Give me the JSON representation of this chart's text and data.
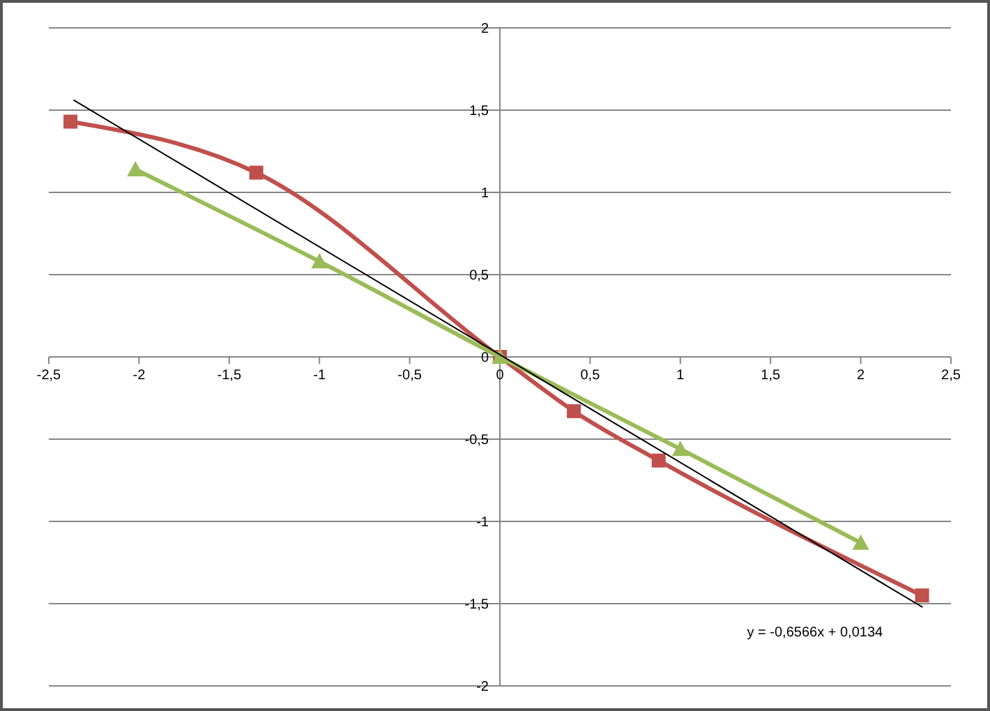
{
  "chart_data": {
    "type": "line",
    "xlim": [
      -2.5,
      2.5
    ],
    "ylim": [
      -2,
      2
    ],
    "xticks": [
      {
        "value": -2.5,
        "label": "-2,5"
      },
      -2,
      {
        "value": -1.5,
        "label": "-1,5"
      },
      -1,
      {
        "value": -0.5,
        "label": "-0,5"
      },
      0,
      {
        "value": 0.5,
        "label": "0,5"
      },
      1,
      {
        "value": 1.5,
        "label": "1,5"
      },
      2,
      {
        "value": 2.5,
        "label": "2,5"
      }
    ],
    "yticks": [
      -2,
      {
        "value": -1.5,
        "label": "-1,5"
      },
      -1,
      {
        "value": -0.5,
        "label": "-0,5"
      },
      0,
      {
        "value": 0.5,
        "label": "0,5"
      },
      1,
      {
        "value": 1.5,
        "label": "1,5"
      },
      2
    ],
    "grid": "y",
    "series": [
      {
        "color": "#c0504d",
        "marker": "square",
        "x": [
          -2.38,
          -1.35,
          0,
          0.41,
          0.88,
          2.34
        ],
        "values": [
          1.43,
          1.12,
          0,
          -0.33,
          -0.63,
          -1.45
        ]
      },
      {
        "color": "#9bbb59",
        "marker": "triangle",
        "x": [
          -2.02,
          -1,
          0,
          1,
          2
        ],
        "values": [
          1.14,
          0.58,
          0,
          -0.56,
          -1.13
        ]
      },
      {
        "color": "#000000",
        "marker": "none",
        "x": [
          -2.36,
          2.34
        ],
        "values": [
          1.56,
          -1.52
        ]
      }
    ],
    "annotations": [
      "y = -0,6566x + 0,0134"
    ]
  }
}
